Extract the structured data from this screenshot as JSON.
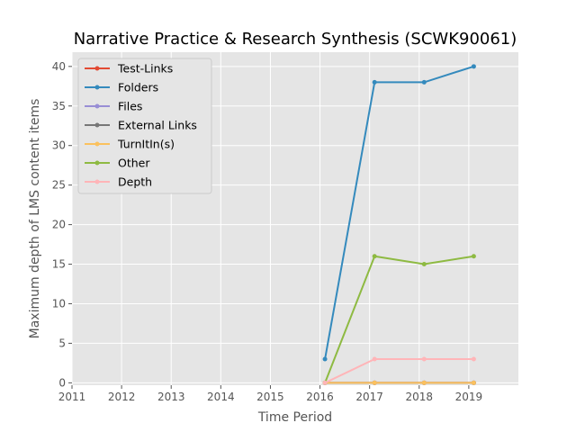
{
  "chart_data": {
    "type": "line",
    "title": "Narrative Practice & Research Synthesis (SCWK90061)",
    "xlabel": "Time Period",
    "ylabel": "Maximum depth of LMS content items",
    "xlim": [
      2011,
      2020
    ],
    "ylim": [
      -0.3,
      41.8
    ],
    "xticks": [
      "2011",
      "2012",
      "2013",
      "2014",
      "2015",
      "2016",
      "2017",
      "2018",
      "2019"
    ],
    "yticks": [
      "0",
      "5",
      "10",
      "15",
      "20",
      "25",
      "30",
      "35",
      "40"
    ],
    "grid": true,
    "legend_position": "top-left",
    "x": [
      2016.1,
      2017.1,
      2018.1,
      2019.1
    ],
    "series": [
      {
        "name": "Test-Links",
        "color": "#e24a33",
        "values": [
          0,
          0,
          0,
          0
        ]
      },
      {
        "name": "Folders",
        "color": "#348abd",
        "values": [
          3,
          38,
          38,
          40
        ]
      },
      {
        "name": "Files",
        "color": "#988ed5",
        "values": [
          0,
          0,
          0,
          0
        ]
      },
      {
        "name": "External Links",
        "color": "#777777",
        "values": [
          0,
          0,
          0,
          0
        ]
      },
      {
        "name": "TurnItIn(s)",
        "color": "#fbc15e",
        "values": [
          0,
          0,
          0,
          0
        ]
      },
      {
        "name": "Other",
        "color": "#8eba42",
        "values": [
          0,
          16,
          15,
          16
        ]
      },
      {
        "name": "Depth",
        "color": "#ffb5b8",
        "values": [
          0,
          3,
          3,
          3
        ]
      }
    ]
  }
}
